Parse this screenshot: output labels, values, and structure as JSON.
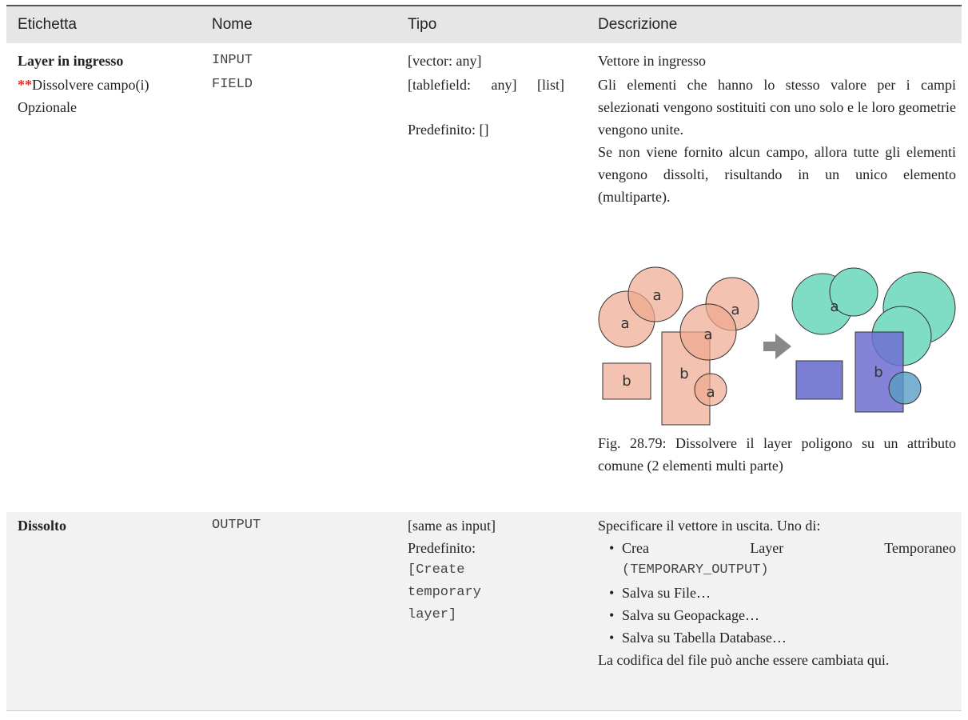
{
  "table": {
    "header": [
      "Etichetta",
      "Nome",
      "Tipo",
      "Descrizione"
    ],
    "rows": [
      {
        "label": "Layer in ingresso",
        "name": "INPUT",
        "type": [
          "[vector: any]"
        ],
        "description": [
          "Vettore in ingresso"
        ]
      },
      {
        "label_marker": "**",
        "label": "Dissolvere campo(i)",
        "optional": "Opzionale",
        "name": "FIELD",
        "type": [
          "[tablefield: any] [list]",
          "Predefinito: []"
        ],
        "description": [
          "Gli elementi che hanno lo stesso valore per i campi selezionati vengono sostituiti con uno solo e le loro geometrie vengono unite.",
          "Se non viene fornito alcun campo, allora tutte gli elementi vengono dissolti, risultando in un unico elemento (multiparte)."
        ],
        "figure": {
          "label_a": "a",
          "label_b": "b",
          "caption": "Fig. 28.79: Dissolvere il layer poligono su un attributo comune (2 elementi multi parte)"
        }
      },
      {
        "label": "Dissolto",
        "name": "OUTPUT",
        "type": [
          "[same as input]",
          "Predefinito:",
          "[Create temporary layer]"
        ],
        "description": [
          "Specificare il vettore in uscita. Uno di:"
        ],
        "options": [
          [
            "Crea Layer Temporaneo",
            "(TEMPORARY_OUTPUT)"
          ],
          [
            "Salva su File…"
          ],
          [
            "Salva su Geopackage…"
          ],
          [
            "Salva su Tabella Database…"
          ]
        ],
        "note": "La codifica del file può anche essere cambiata qui."
      }
    ]
  }
}
